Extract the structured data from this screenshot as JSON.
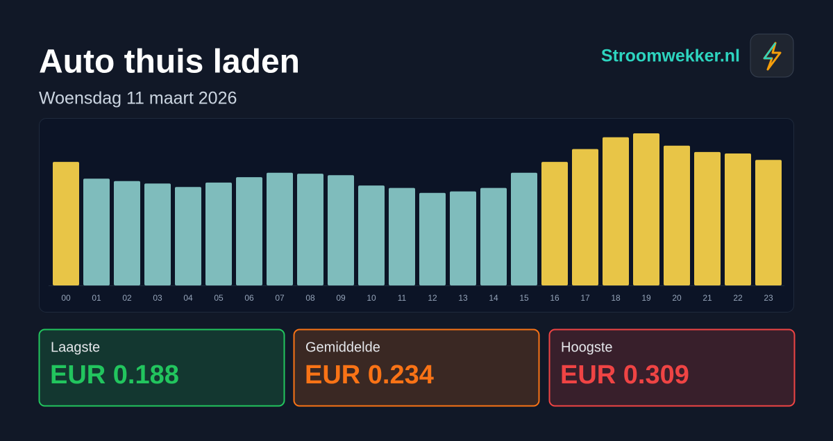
{
  "header": {
    "title": "Auto thuis laden",
    "subtitle": "Woensdag 11 maart 2026",
    "brand": "Stroomwekker.nl"
  },
  "chart_data": {
    "type": "bar",
    "categories": [
      "00",
      "01",
      "02",
      "03",
      "04",
      "05",
      "06",
      "07",
      "08",
      "09",
      "10",
      "11",
      "12",
      "13",
      "14",
      "15",
      "16",
      "17",
      "18",
      "19",
      "20",
      "21",
      "22",
      "23"
    ],
    "values": [
      0.251,
      0.217,
      0.212,
      0.207,
      0.2,
      0.209,
      0.22,
      0.229,
      0.227,
      0.224,
      0.203,
      0.198,
      0.188,
      0.191,
      0.198,
      0.229,
      0.251,
      0.277,
      0.301,
      0.309,
      0.284,
      0.271,
      0.268,
      0.255
    ],
    "colors": {
      "above_average": "#e8c547",
      "below_average": "#7fbcbc"
    }
  },
  "stats": {
    "labels": [
      "Laagste",
      "Gemiddelde",
      "Hoogste"
    ],
    "values": [
      0.188,
      0.234,
      0.309
    ],
    "value_labels": [
      "EUR 0.188",
      "EUR 0.234",
      "EUR 0.309"
    ],
    "colors": [
      "#22c55e",
      "#f97316",
      "#ef4444"
    ]
  }
}
